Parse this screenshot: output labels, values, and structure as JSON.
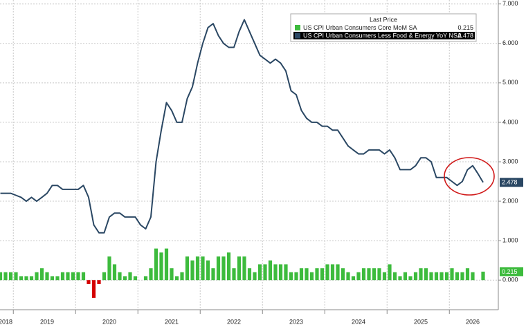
{
  "chart_data": {
    "type": "bar-line",
    "legend_title": "Last Price",
    "categories": [
      null,
      "2018",
      null,
      null,
      null,
      null,
      null,
      null,
      null,
      "2019",
      null,
      null,
      null,
      null,
      null,
      null,
      null,
      null,
      null,
      null,
      null,
      "2020",
      null,
      null,
      null,
      null,
      null,
      null,
      null,
      null,
      null,
      null,
      null,
      "2021",
      null,
      null,
      null,
      null,
      null,
      null,
      null,
      null,
      null,
      null,
      null,
      "2022",
      null,
      null,
      null,
      null,
      null,
      null,
      null,
      null,
      null,
      null,
      null,
      "2023",
      null,
      null,
      null,
      null,
      null,
      null,
      null,
      null,
      null,
      null,
      null,
      "2024",
      null,
      null,
      null,
      null,
      null,
      null,
      null,
      null,
      null,
      null,
      null,
      "2025",
      null,
      null,
      null,
      null,
      null,
      null,
      null,
      null,
      null,
      "2026",
      null,
      null
    ],
    "series": [
      {
        "name": "US CPI Urban Consumers Core MoM SA",
        "type": "bar",
        "color": "#3dbb3d",
        "negative_color": "#d40000",
        "values": [
          0.2,
          0.2,
          0.2,
          0.2,
          0.1,
          0.1,
          0.1,
          0.2,
          0.3,
          0.2,
          0.1,
          0.1,
          0.2,
          0.2,
          0.2,
          0.2,
          0.2,
          -0.1,
          -0.45,
          -0.1,
          0.2,
          0.6,
          0.4,
          0.2,
          0.1,
          0.2,
          0.1,
          0.0,
          0.1,
          0.3,
          0.8,
          0.7,
          0.8,
          0.3,
          0.1,
          0.2,
          0.6,
          0.5,
          0.6,
          0.6,
          0.5,
          0.3,
          0.6,
          0.6,
          0.7,
          0.3,
          0.6,
          0.6,
          0.3,
          0.2,
          0.4,
          0.4,
          0.5,
          0.4,
          0.4,
          0.4,
          0.2,
          0.2,
          0.3,
          0.3,
          0.2,
          0.3,
          0.3,
          0.4,
          0.4,
          0.4,
          0.3,
          0.2,
          0.1,
          0.2,
          0.3,
          0.3,
          0.3,
          0.3,
          0.2,
          0.4,
          0.2,
          0.1,
          0.2,
          0.1,
          0.2,
          0.3,
          0.3,
          0.2,
          0.2,
          0.2,
          0.2,
          0.3,
          0.2,
          0.2,
          0.3,
          0.2,
          null,
          0.215
        ]
      },
      {
        "name": "US CPI Urban Consumers Less Food & Energy YoY NSA",
        "type": "line",
        "color": "#2a4763",
        "values": [
          2.2,
          2.2,
          2.2,
          2.15,
          2.1,
          2.0,
          2.1,
          2.0,
          2.1,
          2.2,
          2.4,
          2.4,
          2.3,
          2.3,
          2.3,
          2.3,
          2.4,
          2.1,
          1.4,
          1.2,
          1.2,
          1.6,
          1.7,
          1.7,
          1.6,
          1.6,
          1.6,
          1.4,
          1.3,
          1.6,
          3.0,
          3.8,
          4.5,
          4.3,
          4.0,
          4.0,
          4.6,
          4.9,
          5.5,
          6.0,
          6.4,
          6.5,
          6.2,
          6.0,
          5.9,
          5.9,
          6.3,
          6.6,
          6.3,
          6.0,
          5.7,
          5.6,
          5.5,
          5.6,
          5.5,
          5.3,
          4.8,
          4.7,
          4.3,
          4.1,
          4.0,
          4.0,
          3.9,
          3.9,
          3.8,
          3.8,
          3.6,
          3.4,
          3.3,
          3.2,
          3.2,
          3.3,
          3.3,
          3.3,
          3.2,
          3.3,
          3.1,
          2.8,
          2.8,
          2.8,
          2.9,
          3.1,
          3.1,
          3.0,
          2.6,
          2.6,
          2.6,
          2.5,
          2.4,
          2.5,
          2.8,
          2.9,
          2.7,
          2.478
        ]
      }
    ],
    "ylim": [
      -0.75,
      7.1
    ],
    "yticks": [
      {
        "value": 0,
        "label": "0.000"
      },
      {
        "value": 1,
        "label": "1.000"
      },
      {
        "value": 2,
        "label": "2.000"
      },
      {
        "value": 3,
        "label": "3.000"
      },
      {
        "value": 4,
        "label": "4.000"
      },
      {
        "value": 5,
        "label": "5.000"
      },
      {
        "value": 6,
        "label": "6.000"
      },
      {
        "value": 7,
        "label": "7.000"
      }
    ],
    "grid": true
  }
}
